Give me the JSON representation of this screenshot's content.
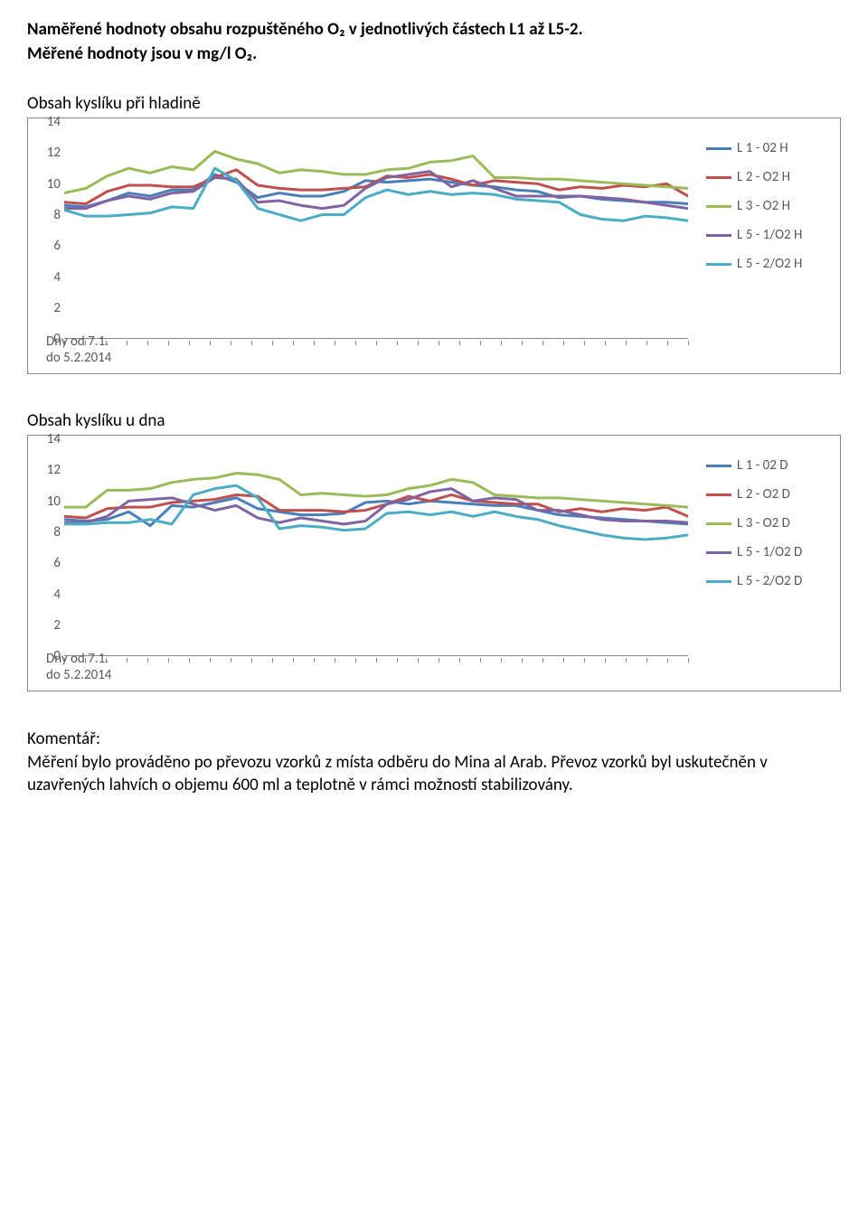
{
  "heading_line1": "Naměřené hodnoty obsahu rozpuštěného O₂ v jednotlivých částech L1 až L5-2.",
  "heading_line2": "Měřené hodnoty jsou v mg/l O₂.",
  "chart1": {
    "title": "Obsah kyslíku při hladině",
    "ylim": [
      0,
      14
    ],
    "ytick_step": 2,
    "n_points": 30,
    "x_label_line1": "Dny od 7.1.",
    "x_label_line2": "do 5.2.2014",
    "series": [
      {
        "name": "L 1 - 02 H",
        "color": "#4a7ebb",
        "values": [
          8.6,
          8.5,
          8.9,
          9.4,
          9.2,
          9.6,
          9.6,
          10.6,
          10.1,
          9.1,
          9.4,
          9.2,
          9.2,
          9.5,
          10.2,
          10.1,
          10.2,
          10.3,
          10.1,
          9.9,
          9.8,
          9.6,
          9.5,
          9.1,
          9.2,
          9.0,
          8.9,
          8.8,
          8.8,
          8.7
        ]
      },
      {
        "name": "L 2 - O2 H",
        "color": "#c0504d",
        "values": [
          8.8,
          8.7,
          9.5,
          9.9,
          9.9,
          9.8,
          9.8,
          10.4,
          10.9,
          9.9,
          9.7,
          9.6,
          9.6,
          9.7,
          9.8,
          10.5,
          10.4,
          10.6,
          10.3,
          9.9,
          10.2,
          10.1,
          10.0,
          9.6,
          9.8,
          9.7,
          9.9,
          9.8,
          10.0,
          9.2
        ]
      },
      {
        "name": "L 3 - O2 H",
        "color": "#9bbb59",
        "values": [
          9.4,
          9.7,
          10.5,
          11.0,
          10.7,
          11.1,
          10.9,
          12.1,
          11.6,
          11.3,
          10.7,
          10.9,
          10.8,
          10.6,
          10.6,
          10.9,
          11.0,
          11.4,
          11.5,
          11.8,
          10.4,
          10.4,
          10.3,
          10.3,
          10.2,
          10.1,
          10.0,
          9.9,
          9.8,
          9.7
        ]
      },
      {
        "name": "L 5 - 1/O2 H",
        "color": "#8064a2",
        "values": [
          8.4,
          8.4,
          8.9,
          9.2,
          9.0,
          9.4,
          9.5,
          10.4,
          10.3,
          8.8,
          8.9,
          8.6,
          8.4,
          8.6,
          9.7,
          10.4,
          10.6,
          10.8,
          9.8,
          10.2,
          9.7,
          9.2,
          9.2,
          9.2,
          9.2,
          9.1,
          9.0,
          8.8,
          8.6,
          8.4
        ]
      },
      {
        "name": "L 5 - 2/O2 H",
        "color": "#4bacc6",
        "values": [
          8.3,
          7.9,
          7.9,
          8.0,
          8.1,
          8.5,
          8.4,
          11.0,
          10.2,
          8.4,
          8.0,
          7.6,
          8.0,
          8.0,
          9.1,
          9.6,
          9.3,
          9.5,
          9.3,
          9.4,
          9.3,
          9.0,
          8.9,
          8.8,
          8.0,
          7.7,
          7.6,
          7.9,
          7.8,
          7.6
        ]
      }
    ]
  },
  "chart2": {
    "title": "Obsah kyslíku u dna",
    "ylim": [
      0,
      14
    ],
    "ytick_step": 2,
    "n_points": 30,
    "x_label_line1": "Dny od 7.1.",
    "x_label_line2": "do 5.2.2014",
    "series": [
      {
        "name": "L 1 - 02 D",
        "color": "#4a7ebb",
        "values": [
          8.8,
          8.7,
          8.8,
          9.3,
          8.4,
          9.7,
          9.6,
          9.9,
          10.2,
          9.5,
          9.3,
          9.1,
          9.1,
          9.2,
          9.9,
          10.0,
          9.8,
          10.0,
          9.9,
          9.8,
          9.7,
          9.7,
          9.4,
          9.1,
          9.0,
          8.9,
          8.8,
          8.7,
          8.6,
          8.5
        ]
      },
      {
        "name": "L 2 - O2 D",
        "color": "#c0504d",
        "values": [
          9.0,
          8.9,
          9.5,
          9.6,
          9.6,
          9.9,
          10.0,
          10.1,
          10.4,
          10.3,
          9.4,
          9.4,
          9.4,
          9.3,
          9.4,
          9.8,
          10.3,
          10.0,
          10.4,
          10.0,
          9.9,
          9.8,
          9.8,
          9.3,
          9.5,
          9.3,
          9.5,
          9.4,
          9.6,
          9.0
        ]
      },
      {
        "name": "L 3 - O2 D",
        "color": "#9bbb59",
        "values": [
          9.6,
          9.6,
          10.7,
          10.7,
          10.8,
          11.2,
          11.4,
          11.5,
          11.8,
          11.7,
          11.4,
          10.4,
          10.5,
          10.4,
          10.3,
          10.4,
          10.8,
          11.0,
          11.4,
          11.2,
          10.4,
          10.3,
          10.2,
          10.2,
          10.1,
          10.0,
          9.9,
          9.8,
          9.7,
          9.6
        ]
      },
      {
        "name": "L 5 - 1/O2 D",
        "color": "#8064a2",
        "values": [
          8.6,
          8.6,
          9.0,
          10.0,
          10.1,
          10.2,
          9.8,
          9.4,
          9.7,
          8.9,
          8.6,
          8.9,
          8.7,
          8.5,
          8.7,
          9.8,
          10.1,
          10.6,
          10.8,
          10.0,
          10.2,
          10.1,
          9.4,
          9.4,
          9.1,
          8.8,
          8.7,
          8.7,
          8.7,
          8.6
        ]
      },
      {
        "name": "L 5 - 2/O2 D",
        "color": "#4bacc6",
        "values": [
          8.5,
          8.5,
          8.6,
          8.6,
          8.8,
          8.5,
          10.4,
          10.8,
          11.0,
          10.2,
          8.2,
          8.4,
          8.3,
          8.1,
          8.2,
          9.2,
          9.3,
          9.1,
          9.3,
          9.0,
          9.3,
          9.0,
          8.8,
          8.4,
          8.1,
          7.8,
          7.6,
          7.5,
          7.6,
          7.8
        ]
      }
    ]
  },
  "comment_label": "Komentář:",
  "comment_text": "Měření bylo prováděno po převozu vzorků z místa odběru do Mina al Arab. Převoz vzorků byl uskutečněn v uzavřených lahvích o objemu 600 ml a teplotně v rámci možností stabilizovány."
}
